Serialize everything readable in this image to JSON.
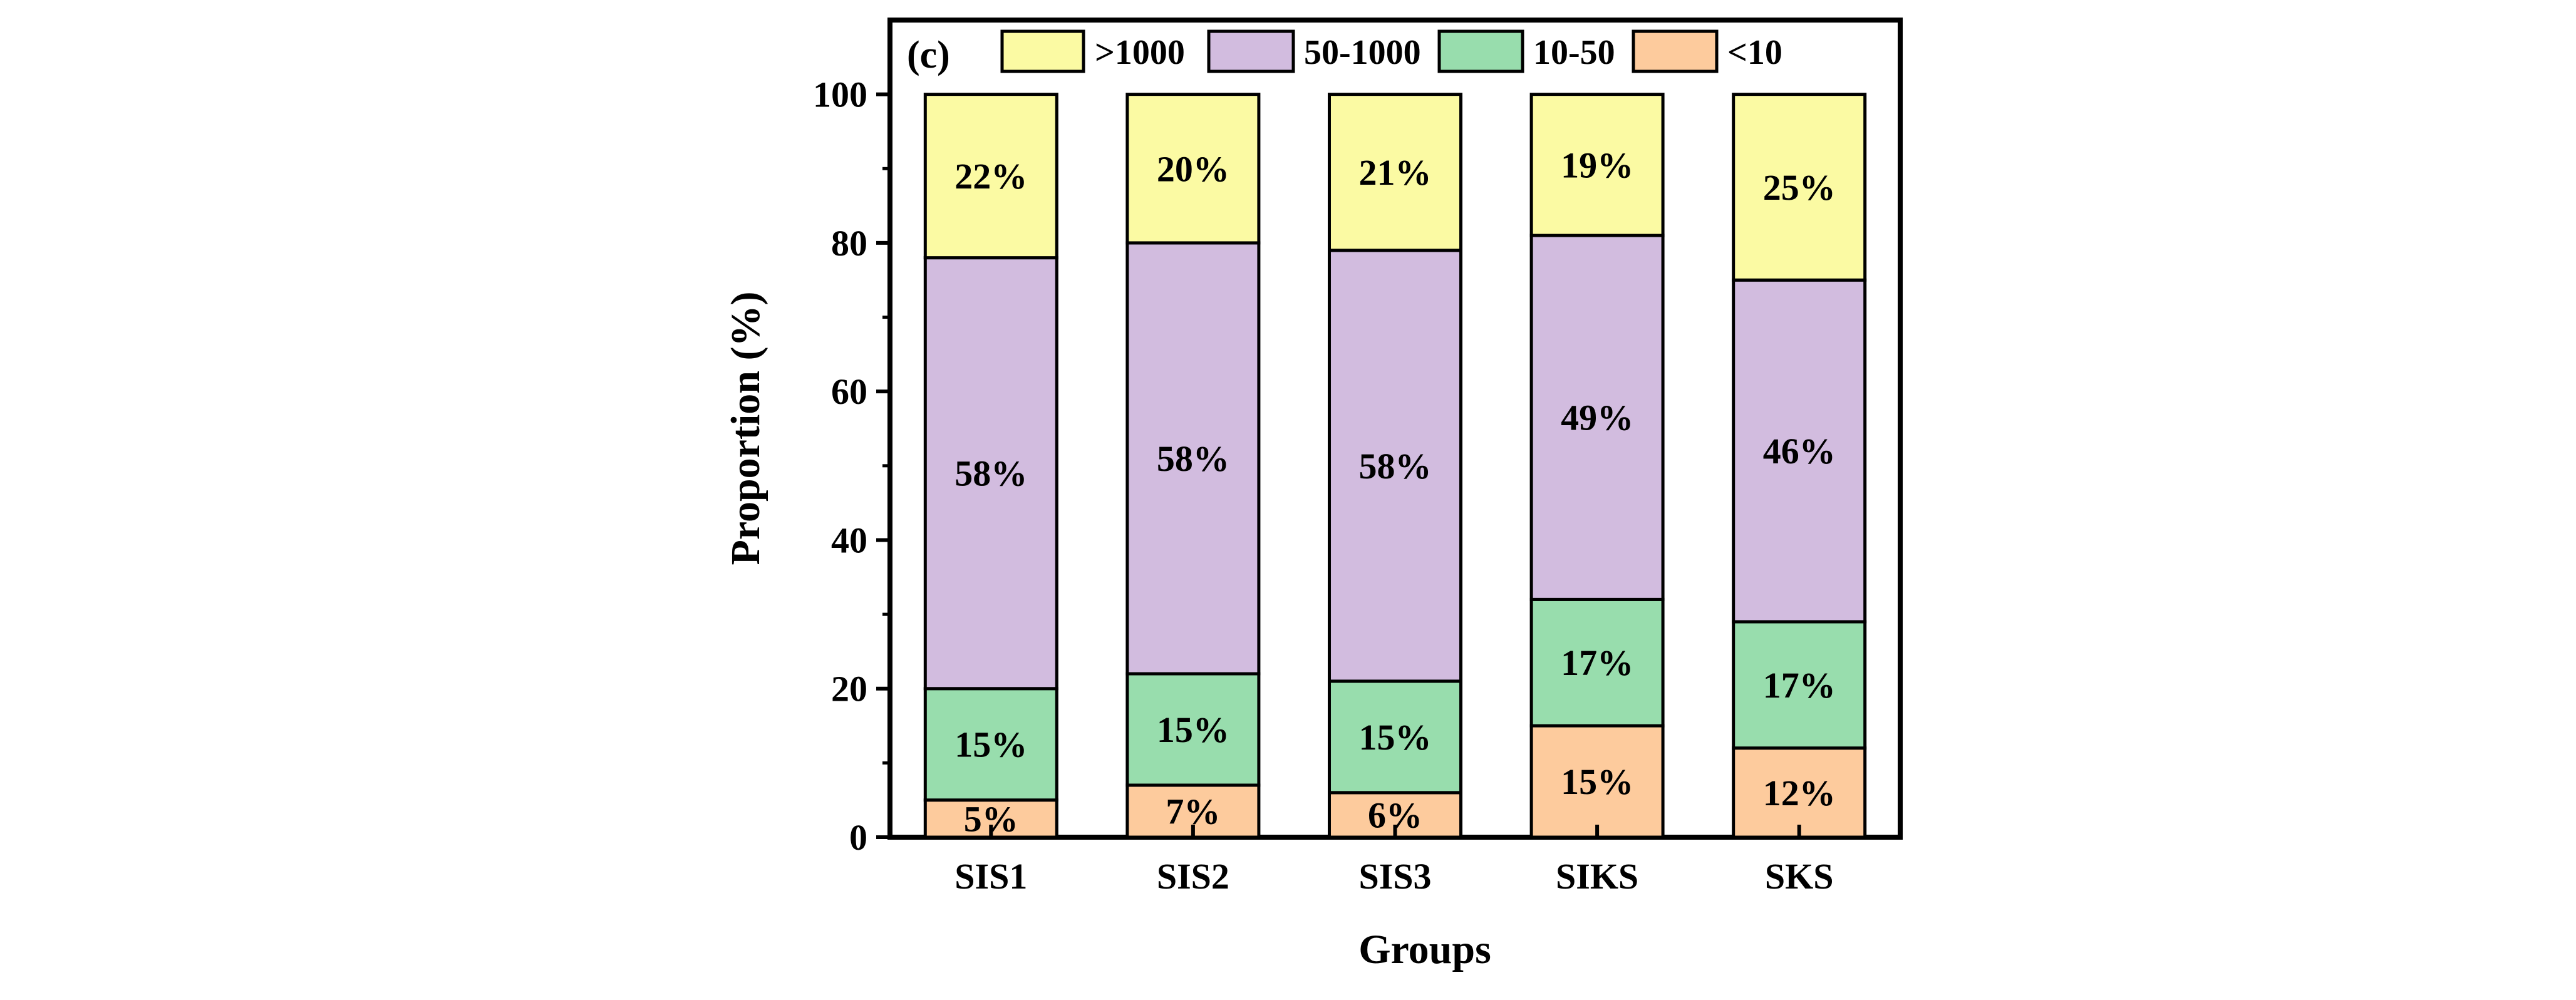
{
  "chart_data": {
    "type": "bar",
    "stacked": true,
    "panel_label": "(c)",
    "xlabel": "Groups",
    "ylabel": "Proportion (%)",
    "ylim": [
      0,
      110
    ],
    "yticks": [
      0,
      20,
      40,
      60,
      80,
      100
    ],
    "categories": [
      "SIS1",
      "SIS2",
      "SIS3",
      "SIKS",
      "SKS"
    ],
    "series": [
      {
        "name": "<10",
        "color": "#FDCB9D",
        "values": [
          5,
          7,
          6,
          15,
          12
        ],
        "labels": [
          "5%",
          "7%",
          "6%",
          "15%",
          "12%"
        ]
      },
      {
        "name": "10-50",
        "color": "#98DDAD",
        "values": [
          15,
          15,
          15,
          17,
          17
        ],
        "labels": [
          "15%",
          "15%",
          "15%",
          "17%",
          "17%"
        ]
      },
      {
        "name": "50-1000",
        "color": "#D2BCDF",
        "values": [
          58,
          58,
          58,
          49,
          46
        ],
        "labels": [
          "58%",
          "58%",
          "58%",
          "49%",
          "46%"
        ]
      },
      {
        "name": ">1000",
        "color": "#FBFAA3",
        "values": [
          22,
          20,
          21,
          19,
          25
        ],
        "labels": [
          "22%",
          "20%",
          "21%",
          "19%",
          "25%"
        ]
      }
    ],
    "legend_order": [
      ">1000",
      "50-1000",
      "10-50",
      "<10"
    ],
    "legend_position": "top"
  }
}
